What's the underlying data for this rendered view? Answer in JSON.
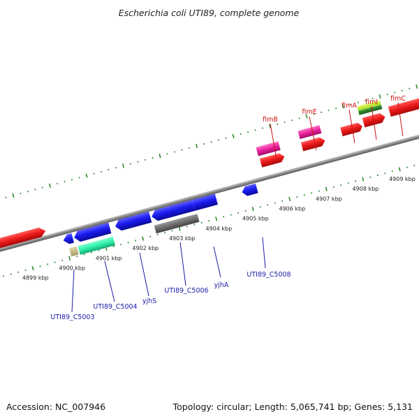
{
  "title": "Escherichia coli UTI89, complete genome",
  "footer": {
    "accession": "Accession: NC_007946",
    "summary": "Topology: circular; Length: 5,065,741 bp; Genes: 5,131"
  },
  "colors": {
    "background": "#ffffff",
    "backbone": "#8c8c8c",
    "ticks": "#2e8a2e",
    "forward_label": "#cc1111",
    "reverse_label": "#1a1aa6"
  },
  "kbp_labels": [
    "4899 kbp",
    "4900 kbp",
    "4901 kbp",
    "4902 kbp",
    "4903 kbp",
    "4904 kbp",
    "4905 kbp",
    "4906 kbp",
    "4907 kbp",
    "4908 kbp",
    "4909 kbp"
  ],
  "forward_gene_labels": [
    "fimB",
    "fimE",
    "fimA",
    "fimI",
    "fimC"
  ],
  "reverse_gene_labels": [
    "UTI89_C5003",
    "UTI89_C5004",
    "yjhS",
    "UTI89_C5006",
    "yjhA",
    "UTI89_C5008"
  ]
}
